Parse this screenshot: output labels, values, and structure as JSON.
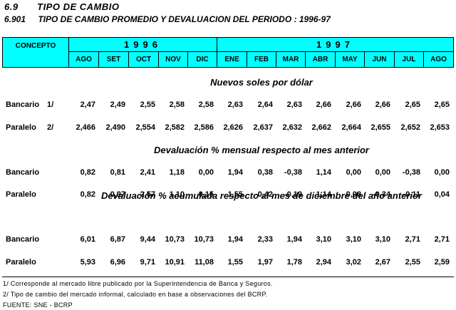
{
  "section": {
    "number": "6.9",
    "title": "TIPO DE CAMBIO"
  },
  "table": {
    "number": "6.901",
    "title": "TIPO DE CAMBIO PROMEDIO Y DEVALUACION DEL PERIODO : 1996-97"
  },
  "header": {
    "concept": "CONCEPTO",
    "year_1996": "1996",
    "year_1997": "1997",
    "months": [
      "AGO",
      "SET",
      "OCT",
      "NOV",
      "DIC",
      "ENE",
      "FEB",
      "MAR",
      "ABR",
      "MAY",
      "JUN",
      "JUL",
      "AGO"
    ]
  },
  "sections": [
    {
      "title": "Nuevos soles por dólar",
      "rows": [
        {
          "label": "Bancario",
          "note": "1/",
          "values": [
            "2,47",
            "2,49",
            "2,55",
            "2,58",
            "2,58",
            "2,63",
            "2,64",
            "2,63",
            "2,66",
            "2,66",
            "2,66",
            "2,65",
            "2,65"
          ]
        },
        {
          "label": "Paralelo",
          "note": "2/",
          "values": [
            "2,466",
            "2,490",
            "2,554",
            "2,582",
            "2,586",
            "2,626",
            "2,637",
            "2,632",
            "2,662",
            "2,664",
            "2,655",
            "2,652",
            "2,653"
          ]
        }
      ]
    },
    {
      "title": "Devaluación % mensual respecto al mes anterior",
      "rows": [
        {
          "label": "Bancario",
          "note": "",
          "values": [
            "0,82",
            "0,81",
            "2,41",
            "1,18",
            "0,00",
            "1,94",
            "0,38",
            "-0,38",
            "1,14",
            "0,00",
            "0,00",
            "-0,38",
            "0,00"
          ]
        },
        {
          "label": "Paralelo",
          "note": "",
          "values": [
            "0,82",
            "0,97",
            "2,57",
            "1,10",
            "0,15",
            "1,55",
            "0,42",
            "-0,19",
            "1,14",
            "0,08",
            "-0,34",
            "-0,11",
            "0,04"
          ]
        }
      ]
    },
    {
      "title": "Devaluación % acumulada respecto al mes de diciembre del año anterior",
      "rows": [
        {
          "label": "Bancario",
          "note": "",
          "values": [
            "6,01",
            "6,87",
            "9,44",
            "10,73",
            "10,73",
            "1,94",
            "2,33",
            "1,94",
            "3,10",
            "3,10",
            "3,10",
            "2,71",
            "2,71"
          ]
        },
        {
          "label": "Paralelo",
          "note": "",
          "values": [
            "5,93",
            "6,96",
            "9,71",
            "10,91",
            "11,08",
            "1,55",
            "1,97",
            "1,78",
            "2,94",
            "3,02",
            "2,67",
            "2,55",
            "2,59"
          ]
        }
      ]
    }
  ],
  "footnotes": [
    "1/ Corresponde al mercado libre publicado por la Superintendencia de Banca y Seguros.",
    "2/ Tipo de cambio del mercado informal, calculado en base a observaciones del BCRP.",
    "FUENTE: SNE - BCRP"
  ]
}
